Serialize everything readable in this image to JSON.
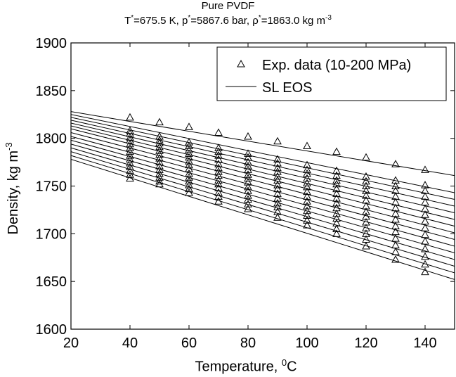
{
  "chart_data": {
    "type": "scatter",
    "title": "Pure PVDF",
    "subtitle": {
      "t_sym": "T",
      "t_rest": "=675.5 K, ",
      "p_sym": "p",
      "p_rest": "=5867.6 bar, ",
      "rho_sym": "ρ",
      "rho_rest": "=1863.0 kg m",
      "rho_exp": "-3",
      "star": "*"
    },
    "xlabel": {
      "text": "Temperature, ",
      "sup": "0",
      "unit": "C"
    },
    "ylabel": {
      "text": "Density, kg m",
      "sup": "-3"
    },
    "xlim": [
      20,
      150
    ],
    "ylim": [
      1600,
      1900
    ],
    "xticks": [
      20,
      40,
      60,
      80,
      100,
      120,
      140
    ],
    "yticks": [
      1600,
      1650,
      1700,
      1750,
      1800,
      1850,
      1900
    ],
    "grid": false,
    "legend": {
      "placement": "top-right",
      "entries": [
        {
          "marker": "triangle",
          "label": "Exp. data (10-200 MPa)"
        },
        {
          "marker": "line",
          "label": "SL EOS"
        }
      ]
    },
    "temperatures": [
      40,
      50,
      60,
      70,
      80,
      90,
      100,
      110,
      120,
      130,
      140
    ],
    "series": [
      {
        "pressure_index": 0,
        "line_y": [
          1778,
          1652
        ],
        "points": [
          1758,
          1752,
          1743,
          1734,
          1726,
          1717,
          1709,
          1700,
          1687,
          1673,
          1660
        ]
      },
      {
        "pressure_index": 1,
        "line_y": [
          1782,
          1659
        ],
        "points": [
          1762,
          1755,
          1747,
          1739,
          1731,
          1723,
          1714,
          1705,
          1694,
          1681,
          1668
        ]
      },
      {
        "pressure_index": 2,
        "line_y": [
          1786,
          1666
        ],
        "points": [
          1766,
          1759,
          1751,
          1743,
          1736,
          1728,
          1719,
          1711,
          1700,
          1688,
          1676
        ]
      },
      {
        "pressure_index": 3,
        "line_y": [
          1790,
          1673
        ],
        "points": [
          1770,
          1763,
          1755,
          1748,
          1740,
          1732,
          1724,
          1716,
          1706,
          1695,
          1684
        ]
      },
      {
        "pressure_index": 4,
        "line_y": [
          1794,
          1680
        ],
        "points": [
          1774,
          1767,
          1759,
          1752,
          1745,
          1737,
          1729,
          1721,
          1712,
          1702,
          1692
        ]
      },
      {
        "pressure_index": 5,
        "line_y": [
          1798,
          1687
        ],
        "points": [
          1778,
          1771,
          1763,
          1756,
          1749,
          1742,
          1734,
          1727,
          1718,
          1708,
          1699
        ]
      },
      {
        "pressure_index": 6,
        "line_y": [
          1802,
          1694
        ],
        "points": [
          1782,
          1775,
          1768,
          1761,
          1754,
          1747,
          1739,
          1732,
          1723,
          1715,
          1706
        ]
      },
      {
        "pressure_index": 7,
        "line_y": [
          1806,
          1701
        ],
        "points": [
          1786,
          1779,
          1772,
          1765,
          1758,
          1751,
          1744,
          1737,
          1729,
          1721,
          1713
        ]
      },
      {
        "pressure_index": 8,
        "line_y": [
          1810,
          1708
        ],
        "points": [
          1790,
          1783,
          1776,
          1769,
          1762,
          1756,
          1749,
          1742,
          1735,
          1727,
          1720
        ]
      },
      {
        "pressure_index": 9,
        "line_y": [
          1813,
          1715
        ],
        "points": [
          1794,
          1787,
          1780,
          1773,
          1767,
          1760,
          1753,
          1747,
          1740,
          1733,
          1726
        ]
      },
      {
        "pressure_index": 10,
        "line_y": [
          1816,
          1722
        ],
        "points": [
          1798,
          1791,
          1784,
          1778,
          1771,
          1765,
          1758,
          1752,
          1745,
          1739,
          1733
        ]
      },
      {
        "pressure_index": 11,
        "line_y": [
          1819,
          1729
        ],
        "points": [
          1801,
          1795,
          1788,
          1782,
          1775,
          1769,
          1763,
          1756,
          1750,
          1745,
          1739
        ]
      },
      {
        "pressure_index": 12,
        "line_y": [
          1822,
          1736
        ],
        "points": [
          1805,
          1798,
          1792,
          1786,
          1780,
          1774,
          1767,
          1761,
          1755,
          1750,
          1745
        ]
      },
      {
        "pressure_index": 13,
        "line_y": [
          1825,
          1743
        ],
        "points": [
          1808,
          1802,
          1796,
          1790,
          1784,
          1778,
          1772,
          1766,
          1760,
          1756,
          1751
        ]
      },
      {
        "pressure_index": 14,
        "line_y": [
          1828,
          1761
        ],
        "points": [
          1822,
          1817,
          1812,
          1806,
          1802,
          1797,
          1792,
          1786,
          1780,
          1773,
          1767
        ]
      }
    ]
  }
}
